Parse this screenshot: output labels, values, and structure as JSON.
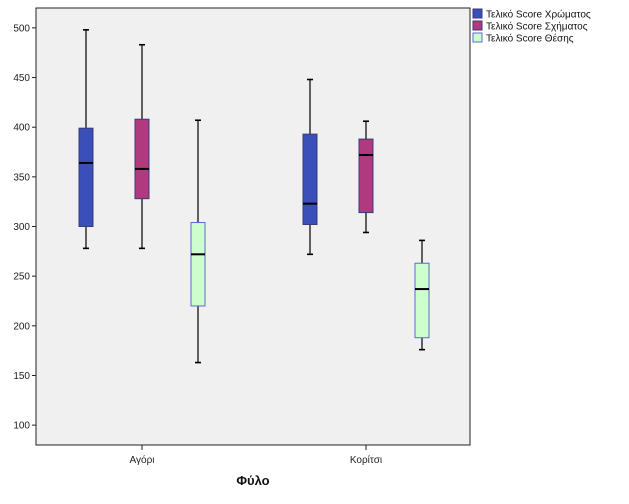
{
  "chart_data": {
    "type": "boxplot",
    "title": "",
    "xlabel": "Φύλο",
    "ylabel": "",
    "ylim": [
      80,
      520
    ],
    "yticks": [
      100,
      150,
      200,
      250,
      300,
      350,
      400,
      450,
      500
    ],
    "categories": [
      "Αγόρι",
      "Κορίτσι"
    ],
    "legend_position": "top-right",
    "series": [
      {
        "name": "Τελικό Score Χρώματος",
        "color": "#3a4fb8",
        "boxes": [
          {
            "min": 278,
            "q1": 300,
            "median": 364,
            "q3": 399,
            "max": 498
          },
          {
            "min": 272,
            "q1": 302,
            "median": 323,
            "q3": 393,
            "max": 448
          }
        ]
      },
      {
        "name": "Τελικό Score Σχήματος",
        "color": "#b03a7e",
        "boxes": [
          {
            "min": 278,
            "q1": 328,
            "median": 358,
            "q3": 408,
            "max": 483
          },
          {
            "min": 294,
            "q1": 314,
            "median": 372,
            "q3": 388,
            "max": 406
          }
        ]
      },
      {
        "name": "Τελικό Score Θέσης",
        "color": "#ccffcc",
        "boxes": [
          {
            "min": 163,
            "q1": 220,
            "median": 272,
            "q3": 304,
            "max": 407
          },
          {
            "min": 176,
            "q1": 188,
            "median": 237,
            "q3": 263,
            "max": 286
          }
        ]
      }
    ]
  }
}
